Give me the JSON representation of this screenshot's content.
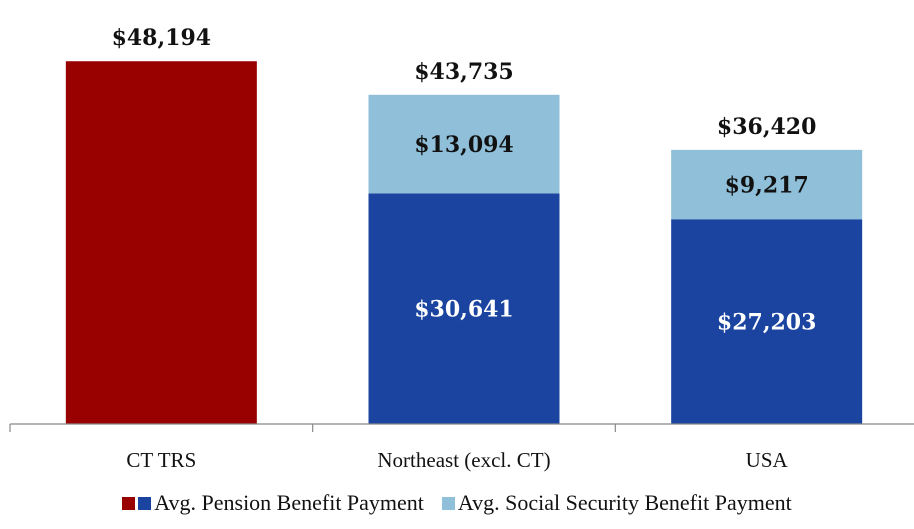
{
  "chart_data": {
    "type": "bar",
    "stacked": true,
    "categories": [
      "CT TRS",
      "Northeast (excl. CT)",
      "USA"
    ],
    "series": [
      {
        "name": "Avg. Pension Benefit Payment",
        "values": [
          48194,
          30641,
          27203
        ],
        "labels": [
          "",
          "$30,641",
          "$27,203"
        ],
        "colors": [
          "#990000",
          "#1a44a0",
          "#1a44a0"
        ]
      },
      {
        "name": "Avg. Social Security Benefit Payment",
        "values": [
          0,
          13094,
          9217
        ],
        "labels": [
          "",
          "$13,094",
          "$9,217"
        ],
        "colors": [
          "#8fbfd9",
          "#8fbfd9",
          "#8fbfd9"
        ]
      }
    ],
    "totals": [
      48194,
      43735,
      36420
    ],
    "total_labels": [
      "$48,194",
      "$43,735",
      "$36,420"
    ],
    "ylim": [
      0,
      55000
    ],
    "grid": false,
    "legend_position": "bottom",
    "legend": [
      {
        "label": "Avg. Pension Benefit Payment",
        "swatches": [
          "#990000",
          "#1a44a0"
        ]
      },
      {
        "label": "Avg. Social Security Benefit Payment",
        "swatches": [
          "#8fbfd9"
        ]
      }
    ],
    "label_colors": {
      "pension": "#ffffff",
      "social_security": "#111111"
    }
  }
}
